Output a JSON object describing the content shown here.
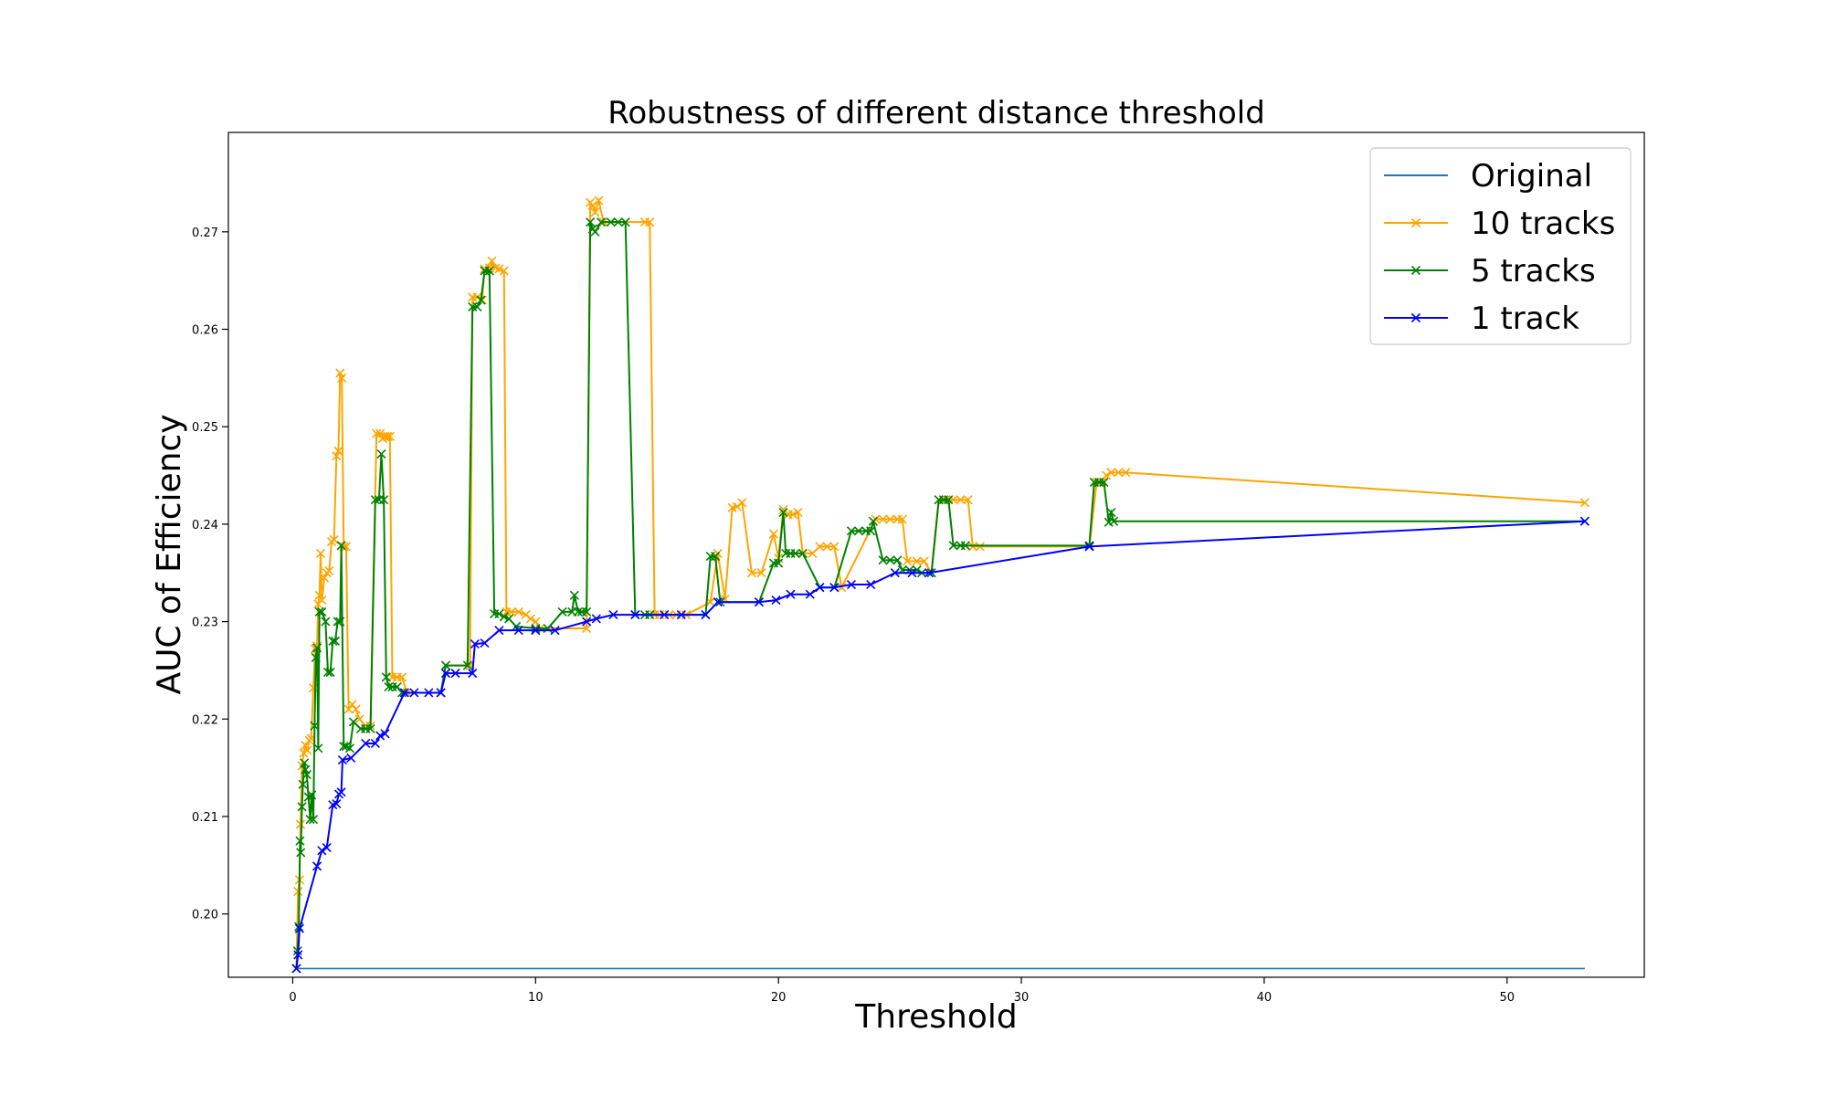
{
  "chart_data": {
    "type": "line",
    "title": "Robustness of different distance threshold",
    "xlabel": "Threshold",
    "ylabel": "AUC of Efficiency",
    "xlim": [
      -2.65,
      55.65
    ],
    "ylim": [
      0.1935,
      0.2802
    ],
    "xticks": [
      0,
      10,
      20,
      30,
      40,
      50
    ],
    "yticks": [
      0.2,
      0.21,
      0.22,
      0.23,
      0.24,
      0.25,
      0.26,
      0.27
    ],
    "ytick_labels": [
      "0.20",
      "0.21",
      "0.22",
      "0.23",
      "0.24",
      "0.25",
      "0.26",
      "0.27"
    ],
    "grid": false,
    "legend_position": "top-right",
    "series": [
      {
        "name": "Original",
        "color": "#1f77b4",
        "marker": "none",
        "points": [
          [
            0.15,
            0.1944
          ],
          [
            53.2,
            0.1944
          ]
        ]
      },
      {
        "name": "10 tracks",
        "color": "#ffa500",
        "marker": "x",
        "points": [
          [
            0.15,
            0.1944
          ],
          [
            0.22,
            0.2023
          ],
          [
            0.28,
            0.2035
          ],
          [
            0.32,
            0.2092
          ],
          [
            0.38,
            0.2152
          ],
          [
            0.45,
            0.2165
          ],
          [
            0.52,
            0.2173
          ],
          [
            0.6,
            0.2168
          ],
          [
            0.68,
            0.2178
          ],
          [
            0.76,
            0.218
          ],
          [
            0.85,
            0.2232
          ],
          [
            0.92,
            0.2272
          ],
          [
            1.0,
            0.2275
          ],
          [
            1.05,
            0.2318
          ],
          [
            1.1,
            0.2327
          ],
          [
            1.15,
            0.237
          ],
          [
            1.2,
            0.2322
          ],
          [
            1.3,
            0.2345
          ],
          [
            1.4,
            0.235
          ],
          [
            1.5,
            0.2352
          ],
          [
            1.6,
            0.2382
          ],
          [
            1.7,
            0.2384
          ],
          [
            1.8,
            0.247
          ],
          [
            1.88,
            0.2475
          ],
          [
            1.95,
            0.2555
          ],
          [
            2.02,
            0.255
          ],
          [
            2.1,
            0.2377
          ],
          [
            2.2,
            0.2377
          ],
          [
            2.3,
            0.221
          ],
          [
            2.45,
            0.2215
          ],
          [
            2.6,
            0.221
          ],
          [
            2.75,
            0.22
          ],
          [
            3.0,
            0.2193
          ],
          [
            3.2,
            0.2193
          ],
          [
            3.45,
            0.2493
          ],
          [
            3.6,
            0.2493
          ],
          [
            3.7,
            0.2488
          ],
          [
            3.8,
            0.249
          ],
          [
            3.9,
            0.249
          ],
          [
            4.0,
            0.249
          ],
          [
            4.1,
            0.2243
          ],
          [
            4.3,
            0.2243
          ],
          [
            4.5,
            0.2243
          ],
          [
            4.7,
            0.2227
          ],
          [
            6.1,
            0.2227
          ],
          [
            6.3,
            0.2255
          ],
          [
            7.3,
            0.2255
          ],
          [
            7.4,
            0.2633
          ],
          [
            7.6,
            0.2633
          ],
          [
            7.8,
            0.263
          ],
          [
            7.9,
            0.2662
          ],
          [
            8.1,
            0.2663
          ],
          [
            8.2,
            0.267
          ],
          [
            8.35,
            0.2663
          ],
          [
            8.5,
            0.2662
          ],
          [
            8.7,
            0.266
          ],
          [
            8.8,
            0.231
          ],
          [
            9.0,
            0.231
          ],
          [
            9.3,
            0.231
          ],
          [
            9.6,
            0.2307
          ],
          [
            9.8,
            0.2303
          ],
          [
            10.0,
            0.23
          ],
          [
            10.2,
            0.2293
          ],
          [
            12.1,
            0.2293
          ],
          [
            12.25,
            0.273
          ],
          [
            12.35,
            0.2727
          ],
          [
            12.45,
            0.272
          ],
          [
            12.6,
            0.2732
          ],
          [
            12.8,
            0.271
          ],
          [
            14.5,
            0.271
          ],
          [
            14.7,
            0.271
          ],
          [
            14.9,
            0.2307
          ],
          [
            15.1,
            0.2307
          ],
          [
            15.5,
            0.2307
          ],
          [
            15.8,
            0.2307
          ],
          [
            16.2,
            0.2307
          ],
          [
            17.2,
            0.232
          ],
          [
            17.5,
            0.237
          ],
          [
            17.8,
            0.2323
          ],
          [
            18.1,
            0.2417
          ],
          [
            18.3,
            0.2418
          ],
          [
            18.5,
            0.2422
          ],
          [
            18.9,
            0.235
          ],
          [
            19.3,
            0.235
          ],
          [
            19.8,
            0.239
          ],
          [
            20.0,
            0.2365
          ],
          [
            20.2,
            0.2415
          ],
          [
            20.4,
            0.241
          ],
          [
            20.6,
            0.241
          ],
          [
            20.8,
            0.2412
          ],
          [
            21.0,
            0.237
          ],
          [
            21.4,
            0.237
          ],
          [
            21.7,
            0.2377
          ],
          [
            22.0,
            0.2377
          ],
          [
            22.3,
            0.2377
          ],
          [
            22.6,
            0.2335
          ],
          [
            24.0,
            0.2405
          ],
          [
            24.3,
            0.2405
          ],
          [
            24.6,
            0.2405
          ],
          [
            24.9,
            0.2405
          ],
          [
            25.1,
            0.2405
          ],
          [
            25.3,
            0.2362
          ],
          [
            25.7,
            0.2362
          ],
          [
            26.0,
            0.2362
          ],
          [
            26.3,
            0.235
          ],
          [
            26.6,
            0.2425
          ],
          [
            26.9,
            0.2425
          ],
          [
            27.2,
            0.2425
          ],
          [
            27.5,
            0.2425
          ],
          [
            27.8,
            0.2425
          ],
          [
            28.0,
            0.2377
          ],
          [
            28.3,
            0.2377
          ],
          [
            32.8,
            0.2377
          ],
          [
            33.1,
            0.2443
          ],
          [
            33.3,
            0.2443
          ],
          [
            33.5,
            0.245
          ],
          [
            33.7,
            0.2453
          ],
          [
            34.0,
            0.2453
          ],
          [
            34.3,
            0.2453
          ],
          [
            53.2,
            0.2422
          ]
        ]
      },
      {
        "name": "5 tracks",
        "color": "#008000",
        "marker": "x",
        "points": [
          [
            0.15,
            0.1944
          ],
          [
            0.2,
            0.1962
          ],
          [
            0.25,
            0.1987
          ],
          [
            0.3,
            0.2075
          ],
          [
            0.33,
            0.2063
          ],
          [
            0.38,
            0.211
          ],
          [
            0.42,
            0.2133
          ],
          [
            0.48,
            0.2155
          ],
          [
            0.52,
            0.2148
          ],
          [
            0.58,
            0.2143
          ],
          [
            0.65,
            0.212
          ],
          [
            0.72,
            0.2097
          ],
          [
            0.78,
            0.2122
          ],
          [
            0.85,
            0.2097
          ],
          [
            0.9,
            0.2193
          ],
          [
            0.95,
            0.2263
          ],
          [
            1.0,
            0.2273
          ],
          [
            1.05,
            0.217
          ],
          [
            1.1,
            0.231
          ],
          [
            1.2,
            0.231
          ],
          [
            1.35,
            0.23
          ],
          [
            1.45,
            0.2248
          ],
          [
            1.55,
            0.2248
          ],
          [
            1.65,
            0.228
          ],
          [
            1.75,
            0.228
          ],
          [
            1.85,
            0.23
          ],
          [
            1.95,
            0.23
          ],
          [
            2.0,
            0.2378
          ],
          [
            2.1,
            0.2172
          ],
          [
            2.2,
            0.2172
          ],
          [
            2.35,
            0.217
          ],
          [
            2.5,
            0.2197
          ],
          [
            2.8,
            0.219
          ],
          [
            3.0,
            0.219
          ],
          [
            3.2,
            0.219
          ],
          [
            3.4,
            0.2425
          ],
          [
            3.55,
            0.2425
          ],
          [
            3.65,
            0.2472
          ],
          [
            3.75,
            0.2425
          ],
          [
            3.85,
            0.2243
          ],
          [
            3.95,
            0.2233
          ],
          [
            4.1,
            0.2233
          ],
          [
            4.3,
            0.2233
          ],
          [
            4.5,
            0.2227
          ],
          [
            6.1,
            0.2227
          ],
          [
            6.3,
            0.2255
          ],
          [
            7.2,
            0.2255
          ],
          [
            7.4,
            0.2623
          ],
          [
            7.6,
            0.2623
          ],
          [
            7.75,
            0.263
          ],
          [
            7.9,
            0.266
          ],
          [
            8.1,
            0.266
          ],
          [
            8.3,
            0.2308
          ],
          [
            8.5,
            0.2308
          ],
          [
            8.7,
            0.2305
          ],
          [
            8.9,
            0.2303
          ],
          [
            9.2,
            0.2295
          ],
          [
            10.0,
            0.2293
          ],
          [
            10.5,
            0.2293
          ],
          [
            11.1,
            0.231
          ],
          [
            11.5,
            0.231
          ],
          [
            11.6,
            0.2327
          ],
          [
            11.75,
            0.231
          ],
          [
            11.9,
            0.231
          ],
          [
            12.1,
            0.231
          ],
          [
            12.25,
            0.271
          ],
          [
            12.35,
            0.2703
          ],
          [
            12.45,
            0.27
          ],
          [
            12.7,
            0.271
          ],
          [
            13.1,
            0.271
          ],
          [
            13.4,
            0.271
          ],
          [
            13.7,
            0.271
          ],
          [
            14.1,
            0.2307
          ],
          [
            14.5,
            0.2307
          ],
          [
            14.7,
            0.2307
          ],
          [
            17.0,
            0.2307
          ],
          [
            17.2,
            0.2367
          ],
          [
            17.4,
            0.2367
          ],
          [
            17.6,
            0.232
          ],
          [
            19.2,
            0.232
          ],
          [
            19.8,
            0.236
          ],
          [
            20.0,
            0.236
          ],
          [
            20.2,
            0.2412
          ],
          [
            20.3,
            0.237
          ],
          [
            20.5,
            0.237
          ],
          [
            20.7,
            0.237
          ],
          [
            21.0,
            0.237
          ],
          [
            21.7,
            0.2335
          ],
          [
            22.3,
            0.2335
          ],
          [
            23.0,
            0.2393
          ],
          [
            23.3,
            0.2393
          ],
          [
            23.6,
            0.2393
          ],
          [
            23.8,
            0.2393
          ],
          [
            23.9,
            0.2403
          ],
          [
            24.3,
            0.2363
          ],
          [
            24.6,
            0.2363
          ],
          [
            24.9,
            0.2363
          ],
          [
            25.1,
            0.2353
          ],
          [
            25.4,
            0.2353
          ],
          [
            25.7,
            0.2353
          ],
          [
            25.9,
            0.235
          ],
          [
            26.3,
            0.235
          ],
          [
            26.6,
            0.2425
          ],
          [
            26.8,
            0.2425
          ],
          [
            27.0,
            0.2425
          ],
          [
            27.2,
            0.2378
          ],
          [
            27.5,
            0.2378
          ],
          [
            27.7,
            0.2378
          ],
          [
            32.8,
            0.2378
          ],
          [
            33.0,
            0.2443
          ],
          [
            33.2,
            0.2443
          ],
          [
            33.4,
            0.2443
          ],
          [
            33.6,
            0.2402
          ],
          [
            33.7,
            0.2412
          ],
          [
            33.8,
            0.2403
          ],
          [
            53.2,
            0.2403
          ]
        ]
      },
      {
        "name": "1 track",
        "color": "#0000ff",
        "marker": "x",
        "points": [
          [
            0.15,
            0.1944
          ],
          [
            0.22,
            0.1958
          ],
          [
            0.28,
            0.1985
          ],
          [
            1.0,
            0.2049
          ],
          [
            1.2,
            0.2065
          ],
          [
            1.4,
            0.2068
          ],
          [
            1.65,
            0.2112
          ],
          [
            1.8,
            0.2113
          ],
          [
            1.9,
            0.2123
          ],
          [
            2.0,
            0.2125
          ],
          [
            2.05,
            0.2158
          ],
          [
            2.4,
            0.216
          ],
          [
            3.0,
            0.2175
          ],
          [
            3.4,
            0.2175
          ],
          [
            3.6,
            0.2183
          ],
          [
            3.8,
            0.2185
          ],
          [
            4.6,
            0.2227
          ],
          [
            5.0,
            0.2227
          ],
          [
            5.6,
            0.2227
          ],
          [
            6.1,
            0.2227
          ],
          [
            6.3,
            0.2247
          ],
          [
            6.7,
            0.2247
          ],
          [
            7.4,
            0.2247
          ],
          [
            7.5,
            0.2277
          ],
          [
            7.9,
            0.2278
          ],
          [
            8.5,
            0.2291
          ],
          [
            9.3,
            0.2291
          ],
          [
            10.0,
            0.2291
          ],
          [
            10.8,
            0.2291
          ],
          [
            12.1,
            0.23
          ],
          [
            12.5,
            0.2303
          ],
          [
            13.2,
            0.2307
          ],
          [
            14.1,
            0.2307
          ],
          [
            15.3,
            0.2307
          ],
          [
            16.0,
            0.2307
          ],
          [
            17.0,
            0.2307
          ],
          [
            17.5,
            0.232
          ],
          [
            19.2,
            0.232
          ],
          [
            19.9,
            0.2322
          ],
          [
            20.5,
            0.2328
          ],
          [
            21.3,
            0.2328
          ],
          [
            21.7,
            0.2335
          ],
          [
            22.3,
            0.2335
          ],
          [
            23.0,
            0.2338
          ],
          [
            23.8,
            0.2338
          ],
          [
            24.8,
            0.235
          ],
          [
            25.5,
            0.235
          ],
          [
            26.2,
            0.235
          ],
          [
            32.8,
            0.2377
          ],
          [
            53.2,
            0.2403
          ]
        ]
      }
    ]
  }
}
